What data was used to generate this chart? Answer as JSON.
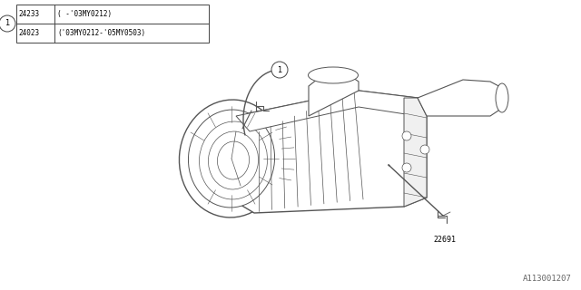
{
  "bg_color": "#ffffff",
  "line_color": "#555555",
  "border_color": "#000000",
  "title_label": "A113001207",
  "part_number_1": "24233",
  "part_number_2": "24023",
  "note_1": "( -'03MY0212)",
  "note_2": "('03MY0212-'05MY0503)",
  "callout_1": "1",
  "sensor_label": "22691",
  "figw": 6.4,
  "figh": 3.2,
  "dpi": 100
}
